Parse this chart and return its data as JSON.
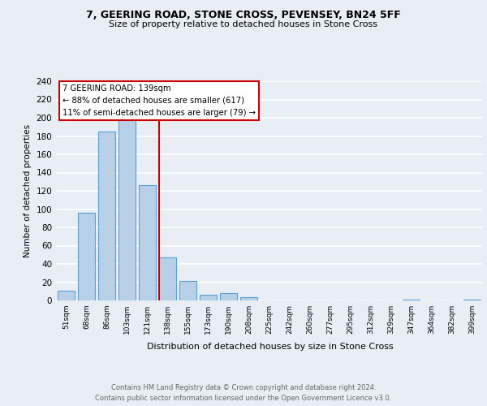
{
  "title1": "7, GEERING ROAD, STONE CROSS, PEVENSEY, BN24 5FF",
  "title2": "Size of property relative to detached houses in Stone Cross",
  "xlabel": "Distribution of detached houses by size in Stone Cross",
  "ylabel": "Number of detached properties",
  "bar_color": "#b8d0e8",
  "bar_edge_color": "#5a9fd4",
  "background_color": "#e8eef4",
  "plot_bg_color": "#e8eef4",
  "bin_labels": [
    "51sqm",
    "68sqm",
    "86sqm",
    "103sqm",
    "121sqm",
    "138sqm",
    "155sqm",
    "173sqm",
    "190sqm",
    "208sqm",
    "225sqm",
    "242sqm",
    "260sqm",
    "277sqm",
    "295sqm",
    "312sqm",
    "329sqm",
    "347sqm",
    "364sqm",
    "382sqm",
    "399sqm"
  ],
  "bar_heights": [
    11,
    96,
    185,
    199,
    126,
    47,
    21,
    6,
    8,
    4,
    0,
    0,
    0,
    0,
    0,
    0,
    0,
    1,
    0,
    0,
    1
  ],
  "property_label": "7 GEERING ROAD: 139sqm",
  "annotation_line1": "← 88% of detached houses are smaller (617)",
  "annotation_line2": "11% of semi-detached houses are larger (79) →",
  "vline_color": "#cc0000",
  "annotation_box_color": "#ffffff",
  "annotation_box_edge": "#cc0000",
  "ylim": [
    0,
    240
  ],
  "yticks": [
    0,
    20,
    40,
    60,
    80,
    100,
    120,
    140,
    160,
    180,
    200,
    220,
    240
  ],
  "footer1": "Contains HM Land Registry data © Crown copyright and database right 2024.",
  "footer2": "Contains public sector information licensed under the Open Government Licence v3.0.",
  "footer_color": "#666666"
}
